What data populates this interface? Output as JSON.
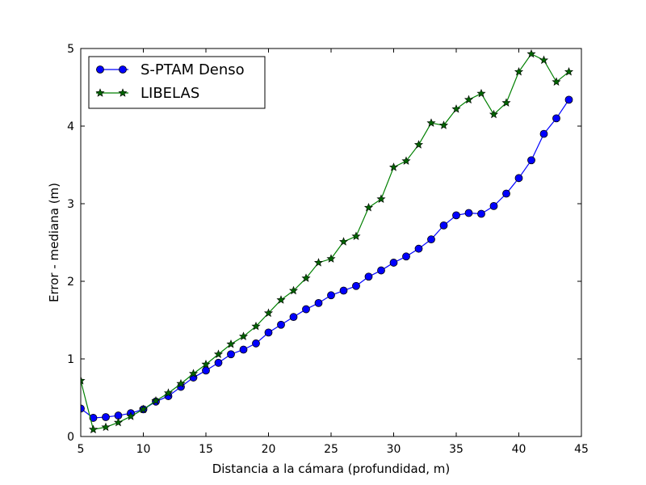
{
  "chart_data": {
    "type": "line",
    "xlabel": "Distancia a la cámara (profundidad, m)",
    "ylabel": "Error - mediana (m)",
    "xlim": [
      5,
      45
    ],
    "ylim": [
      0,
      5
    ],
    "xticks": [
      "5",
      "10",
      "15",
      "20",
      "25",
      "30",
      "35",
      "40",
      "45"
    ],
    "yticks": [
      "0",
      "1",
      "2",
      "3",
      "4",
      "5"
    ],
    "grid": false,
    "legend_position": "top-left",
    "x": [
      5,
      6,
      7,
      8,
      9,
      10,
      11,
      12,
      13,
      14,
      15,
      16,
      17,
      18,
      19,
      20,
      21,
      22,
      23,
      24,
      25,
      26,
      27,
      28,
      29,
      30,
      31,
      32,
      33,
      34,
      35,
      36,
      37,
      38,
      39,
      40,
      41,
      42,
      43,
      44
    ],
    "series": [
      {
        "name": "S-PTAM Denso",
        "color": "#0000ff",
        "line_color": "#0000ff",
        "marker": "circle",
        "values": [
          0.36,
          0.24,
          0.25,
          0.27,
          0.3,
          0.35,
          0.45,
          0.52,
          0.64,
          0.76,
          0.85,
          0.95,
          1.06,
          1.12,
          1.2,
          1.34,
          1.44,
          1.54,
          1.64,
          1.72,
          1.82,
          1.88,
          1.94,
          2.06,
          2.14,
          2.24,
          2.32,
          2.42,
          2.54,
          2.72,
          2.85,
          2.88,
          2.87,
          2.97,
          3.13,
          3.33,
          3.56,
          3.9,
          4.1,
          4.34
        ]
      },
      {
        "name": "LIBELAS",
        "color": "#006400",
        "line_color": "#008000",
        "marker": "star",
        "values": [
          0.72,
          0.09,
          0.12,
          0.18,
          0.26,
          0.35,
          0.46,
          0.56,
          0.68,
          0.81,
          0.93,
          1.06,
          1.19,
          1.29,
          1.42,
          1.59,
          1.76,
          1.88,
          2.04,
          2.24,
          2.29,
          2.51,
          2.58,
          2.95,
          3.06,
          3.47,
          3.55,
          3.76,
          4.04,
          4.01,
          4.22,
          4.34,
          4.42,
          4.15,
          4.3,
          4.7,
          4.93,
          4.85,
          4.57,
          4.7
        ]
      }
    ]
  }
}
